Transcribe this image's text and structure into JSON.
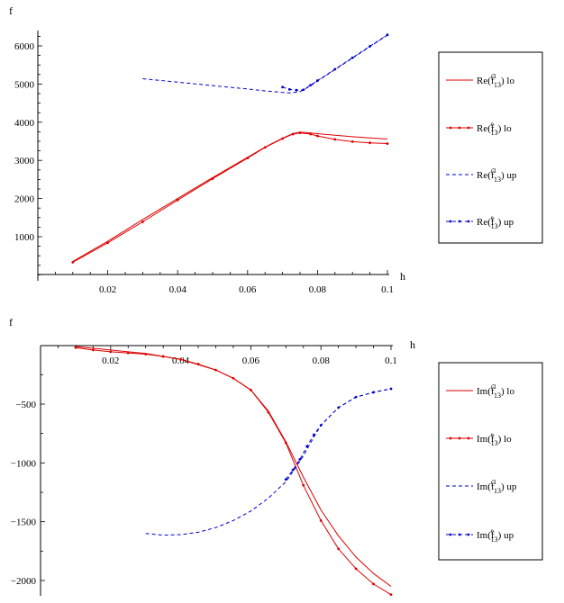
{
  "chart_data": [
    {
      "type": "line",
      "xlabel": "h",
      "ylabel": "f",
      "xlim": [
        0.0,
        0.1
      ],
      "ylim": [
        0,
        6500
      ],
      "xticks": [
        0.02,
        0.04,
        0.06,
        0.08,
        0.1
      ],
      "xtick_labels": [
        "0.02",
        "0.04",
        "0.06",
        "0.08",
        "0.1"
      ],
      "yticks": [
        1000,
        2000,
        3000,
        4000,
        5000,
        6000
      ],
      "ytick_labels": [
        "1000",
        "2000",
        "3000",
        "4000",
        "5000",
        "6000"
      ],
      "legend_position": "right",
      "series": [
        {
          "label_pre": "Re(",
          "label_f": "f",
          "label_sup": "ε̂1",
          "label_sub": "13",
          "label_post": ") lo",
          "color": "#dd0000",
          "style": "solid",
          "marker": false,
          "x": [
            0.01,
            0.02,
            0.03,
            0.04,
            0.05,
            0.06,
            0.065,
            0.07,
            0.073,
            0.075,
            0.078,
            0.08,
            0.085,
            0.09,
            0.095,
            0.1
          ],
          "y": [
            350,
            880,
            1450,
            2000,
            2550,
            3080,
            3350,
            3580,
            3700,
            3740,
            3720,
            3700,
            3660,
            3620,
            3590,
            3560
          ]
        },
        {
          "label_pre": "Re(",
          "label_f": "f",
          "label_sup": "e",
          "label_sub": "13",
          "label_post": ") lo",
          "color": "#dd0000",
          "style": "solid",
          "marker": true,
          "x": [
            0.01,
            0.02,
            0.03,
            0.04,
            0.05,
            0.06,
            0.065,
            0.07,
            0.073,
            0.075,
            0.078,
            0.08,
            0.085,
            0.09,
            0.095,
            0.1
          ],
          "y": [
            330,
            840,
            1390,
            1960,
            2520,
            3060,
            3340,
            3570,
            3690,
            3720,
            3690,
            3640,
            3550,
            3490,
            3460,
            3440
          ]
        },
        {
          "label_pre": "Re(",
          "label_f": "f",
          "label_sup": "ε̂1",
          "label_sub": "13",
          "label_post": ") up",
          "color": "#0000cc",
          "style": "dashed",
          "marker": false,
          "x": [
            0.03,
            0.04,
            0.05,
            0.06,
            0.065,
            0.07,
            0.072,
            0.075,
            0.078,
            0.08,
            0.085,
            0.09,
            0.095,
            0.1
          ],
          "y": [
            5140,
            5050,
            4960,
            4870,
            4820,
            4780,
            4770,
            4800,
            4950,
            5080,
            5380,
            5680,
            5980,
            6280
          ]
        },
        {
          "label_pre": "Re(",
          "label_f": "f",
          "label_sup": "e",
          "label_sub": "13",
          "label_post": ") up",
          "color": "#0000cc",
          "style": "dashed",
          "marker": true,
          "x": [
            0.07,
            0.072,
            0.074,
            0.076,
            0.078,
            0.08,
            0.085,
            0.09,
            0.095,
            0.1
          ],
          "y": [
            4920,
            4860,
            4840,
            4850,
            4970,
            5090,
            5390,
            5690,
            5990,
            6290
          ]
        }
      ]
    },
    {
      "type": "line",
      "xlabel": "h",
      "ylabel": "f",
      "xlim": [
        0.0,
        0.1
      ],
      "ylim": [
        -2200,
        0
      ],
      "xticks": [
        0.02,
        0.04,
        0.06,
        0.08,
        0.1
      ],
      "xtick_labels": [
        "0.02",
        "0.04",
        "0.06",
        "0.08",
        "0.1"
      ],
      "yticks": [
        -500,
        -1000,
        -1500,
        -2000
      ],
      "ytick_labels": [
        "-500",
        "-1000",
        "-1500",
        "-2000"
      ],
      "legend_position": "right",
      "series": [
        {
          "label_pre": "Im(",
          "label_f": "f",
          "label_sup": "ε̂1",
          "label_sub": "13",
          "label_post": ") lo",
          "color": "#dd0000",
          "style": "solid",
          "marker": false,
          "x": [
            0.01,
            0.02,
            0.03,
            0.04,
            0.05,
            0.055,
            0.06,
            0.065,
            0.07,
            0.075,
            0.08,
            0.085,
            0.09,
            0.095,
            0.1
          ],
          "y": [
            -10,
            -40,
            -70,
            -120,
            -210,
            -280,
            -380,
            -560,
            -820,
            -1120,
            -1400,
            -1620,
            -1800,
            -1940,
            -2050
          ]
        },
        {
          "label_pre": "Im(",
          "label_f": "f",
          "label_sup": "e",
          "label_sub": "13",
          "label_post": ") lo",
          "color": "#dd0000",
          "style": "solid",
          "marker": true,
          "x": [
            0.01,
            0.015,
            0.02,
            0.025,
            0.03,
            0.035,
            0.04,
            0.045,
            0.05,
            0.055,
            0.06,
            0.065,
            0.07,
            0.075,
            0.08,
            0.085,
            0.09,
            0.095,
            0.1
          ],
          "y": [
            -20,
            -40,
            -55,
            -65,
            -75,
            -95,
            -120,
            -160,
            -210,
            -280,
            -380,
            -570,
            -830,
            -1190,
            -1490,
            -1730,
            -1900,
            -2030,
            -2120
          ]
        },
        {
          "label_pre": "Im(",
          "label_f": "f",
          "label_sup": "ε̂1",
          "label_sub": "13",
          "label_post": ") up",
          "color": "#0000cc",
          "style": "dashed",
          "marker": false,
          "x": [
            0.03,
            0.035,
            0.04,
            0.045,
            0.05,
            0.055,
            0.06,
            0.065,
            0.07,
            0.073,
            0.075,
            0.078,
            0.08,
            0.085,
            0.09,
            0.095,
            0.1
          ],
          "y": [
            -1600,
            -1615,
            -1610,
            -1590,
            -1550,
            -1490,
            -1410,
            -1300,
            -1160,
            -1030,
            -940,
            -780,
            -680,
            -530,
            -440,
            -400,
            -370
          ]
        },
        {
          "label_pre": "Im(",
          "label_f": "f",
          "label_sup": "e",
          "label_sub": "13",
          "label_post": ") up",
          "color": "#0000cc",
          "style": "dashed",
          "marker": true,
          "x": [
            0.07,
            0.072,
            0.074,
            0.076,
            0.078,
            0.08,
            0.085,
            0.09,
            0.095,
            0.1
          ],
          "y": [
            -1140,
            -1060,
            -970,
            -860,
            -760,
            -680,
            -530,
            -440,
            -400,
            -370
          ]
        }
      ]
    }
  ]
}
